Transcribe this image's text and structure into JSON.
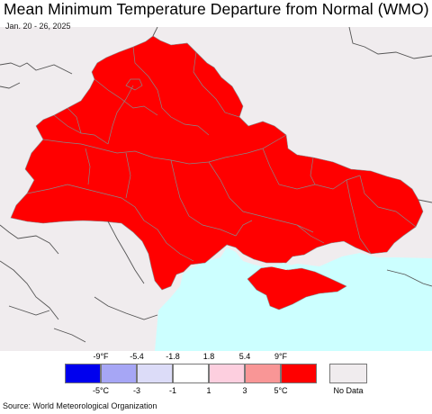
{
  "title": "Mean Minimum Temperature Departure from Normal (WMO)",
  "date_range": "Jan. 20 - 26, 2025",
  "legend": {
    "fahrenheit_labels": [
      "-9°F",
      "-5.4",
      "-1.8",
      "1.8",
      "5.4",
      "9°F"
    ],
    "celsius_labels": [
      "-5°C",
      "-3",
      "-1",
      "1",
      "3",
      "5°C"
    ],
    "bins": [
      "#0000ee",
      "#a6a6f5",
      "#dcdcf8",
      "#ffffff",
      "#fdcfdf",
      "#f99696",
      "#ff0000"
    ],
    "no_data_label": "No Data",
    "no_data_color": "#f0ecee"
  },
  "colors": {
    "anomaly_fill": "#ff0000",
    "water": "#ccffff",
    "outside_region": "#f0ecee",
    "boundaries": "#888888"
  },
  "source": "Source: World Meteorological Organization"
}
